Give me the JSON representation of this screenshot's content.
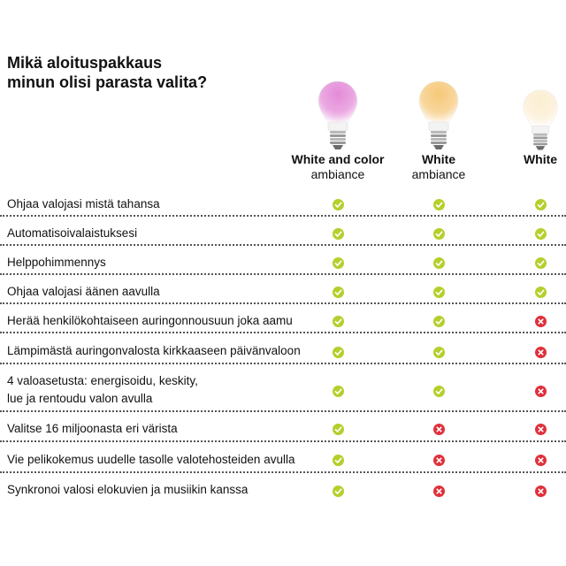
{
  "title": {
    "line1": "Mikä aloituspakkaus",
    "line2": "minun olisi parasta valita?"
  },
  "products": [
    {
      "name": "White and color",
      "sub": "ambiance",
      "bulb_color": "#e48bd8"
    },
    {
      "name": "White",
      "sub": "ambiance",
      "bulb_color": "#f6c879"
    },
    {
      "name": "White",
      "sub": "",
      "bulb_color": "#fbeed2"
    }
  ],
  "colors": {
    "yes": "#b5cf2c",
    "no": "#e0303a",
    "divider": "#555555"
  },
  "icons": {
    "yes": "check-icon",
    "no": "cross-icon"
  },
  "features": [
    {
      "lines": [
        "Ohjaa valojasi mistä tahansa"
      ],
      "values": [
        true,
        true,
        true
      ]
    },
    {
      "lines": [
        "Automatisoivalaistuksesi"
      ],
      "values": [
        true,
        true,
        true
      ]
    },
    {
      "lines": [
        "Helppohimmennys"
      ],
      "values": [
        true,
        true,
        true
      ]
    },
    {
      "lines": [
        "Ohjaa valojasi äänen aavulla"
      ],
      "values": [
        true,
        true,
        true
      ]
    },
    {
      "lines": [
        "Herää henkilökohtaiseen auringonnousuun joka aamu"
      ],
      "values": [
        true,
        true,
        false
      ]
    },
    {
      "lines": [
        "Lämpimästä auringonvalosta kirkkaaseen päivänvaloon"
      ],
      "values": [
        true,
        true,
        false
      ]
    },
    {
      "lines": [
        "4 valoasetusta: energisoidu, keskity,",
        "lue ja rentoudu valon avulla"
      ],
      "values": [
        true,
        true,
        false
      ]
    },
    {
      "lines": [
        "Valitse 16 miljoonasta eri värista"
      ],
      "values": [
        true,
        false,
        false
      ]
    },
    {
      "lines": [
        "Vie pelikokemus uudelle tasolle valotehosteiden avulla"
      ],
      "values": [
        true,
        false,
        false
      ]
    },
    {
      "lines": [
        "Synkronoi valosi elokuvien ja musiikin kanssa"
      ],
      "values": [
        true,
        false,
        false
      ]
    }
  ]
}
